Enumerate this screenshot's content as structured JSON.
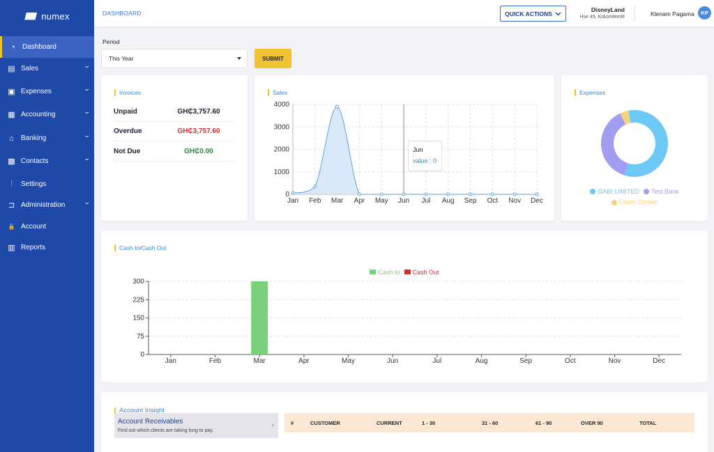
{
  "brand": {
    "name": "numex"
  },
  "sidebar": {
    "items": [
      {
        "label": "Dashboard",
        "icon": "dashboard-icon",
        "active": true,
        "has_submenu": false
      },
      {
        "label": "Sales",
        "icon": "document-icon",
        "active": false,
        "has_submenu": true
      },
      {
        "label": "Expenses",
        "icon": "wallet-icon",
        "active": false,
        "has_submenu": true
      },
      {
        "label": "Accounting",
        "icon": "calculator-icon",
        "active": false,
        "has_submenu": true
      },
      {
        "label": "Banking",
        "icon": "bank-icon",
        "active": false,
        "has_submenu": true
      },
      {
        "label": "Contacts",
        "icon": "contact-card-icon",
        "active": false,
        "has_submenu": true
      },
      {
        "label": "Settings",
        "icon": "sliders-icon",
        "active": false,
        "has_submenu": false
      },
      {
        "label": "Administration",
        "icon": "door-icon",
        "active": false,
        "has_submenu": true
      },
      {
        "label": "Account",
        "icon": "lock-icon",
        "active": false,
        "has_submenu": false
      },
      {
        "label": "Reports",
        "icon": "report-icon",
        "active": false,
        "has_submenu": false
      }
    ]
  },
  "header": {
    "breadcrumb": "DASHBOARD",
    "quick_actions": "QUICK ACTIONS",
    "company_name": "DisneyLand",
    "company_address": "Hse 49, Kokomlemle",
    "user_name": "Klenam Pagama",
    "user_initials": "KP"
  },
  "period": {
    "label": "Period",
    "selected": "This Year",
    "submit": "SUBMIT"
  },
  "invoices": {
    "title": "Invoices",
    "rows": [
      {
        "label": "Unpaid",
        "value": "GH₵3,757.60",
        "color": "#1c2333"
      },
      {
        "label": "Overdue",
        "value": "GH₵3,757.60",
        "color": "#d0302f"
      },
      {
        "label": "Not Due",
        "value": "GH₵0.00",
        "color": "#2e8a3a"
      }
    ]
  },
  "sales": {
    "title": "Sales",
    "tooltip": {
      "title": "Jun",
      "text": "value : 0"
    }
  },
  "expenses": {
    "title": "Expenses",
    "legend": [
      {
        "name": "GABI LIMITED",
        "color": "#6cc8f5"
      },
      {
        "name": "Test Bank",
        "color": "#a19ef2"
      },
      {
        "name": "Osam Osman",
        "color": "#f5d27f"
      }
    ]
  },
  "cashflow": {
    "title": "Cash In/Cash Out",
    "legend": [
      {
        "name": "Cash In",
        "color": "#7bd07b"
      },
      {
        "name": "Cash Out",
        "color": "#d0302f"
      }
    ]
  },
  "insight": {
    "title": "Account Insight",
    "receivables_title": "Account Receivables",
    "receivables_subtitle": "Find out which clients are taking long to pay.",
    "columns": [
      "#",
      "CUSTOMER",
      "CURRENT",
      "1 - 30",
      "31 - 60",
      "61 - 90",
      "OVER 90",
      "TOTAL"
    ]
  },
  "chart_data": [
    {
      "type": "area",
      "title": "Sales",
      "categories": [
        "Jan",
        "Feb",
        "Mar",
        "Apr",
        "May",
        "Jun",
        "Jul",
        "Aug",
        "Sep",
        "Oct",
        "Nov",
        "Dec"
      ],
      "values": [
        50,
        350,
        3900,
        0,
        0,
        0,
        0,
        0,
        0,
        0,
        0,
        0
      ],
      "yticks": [
        0,
        1000,
        2000,
        3000,
        4000
      ],
      "ylim": [
        0,
        4000
      ],
      "grid": true
    },
    {
      "type": "pie",
      "title": "Expenses",
      "labels": [
        "GABI LIMITED",
        "Test Bank",
        "Osam Osman"
      ],
      "values": [
        58,
        38,
        4
      ]
    },
    {
      "type": "bar",
      "title": "Cash In/Cash Out",
      "categories": [
        "Jan",
        "Feb",
        "Mar",
        "Apr",
        "May",
        "Jun",
        "Jul",
        "Aug",
        "Sep",
        "Oct",
        "Nov",
        "Dec"
      ],
      "series": [
        {
          "name": "Cash In",
          "values": [
            0,
            0,
            300,
            0,
            0,
            0,
            0,
            0,
            0,
            0,
            0,
            0
          ]
        },
        {
          "name": "Cash Out",
          "values": [
            0,
            0,
            0,
            0,
            0,
            0,
            0,
            0,
            0,
            0,
            0,
            0
          ]
        }
      ],
      "yticks": [
        0,
        75,
        150,
        225,
        300
      ],
      "ylim": [
        0,
        300
      ],
      "legend": "top-center"
    }
  ]
}
